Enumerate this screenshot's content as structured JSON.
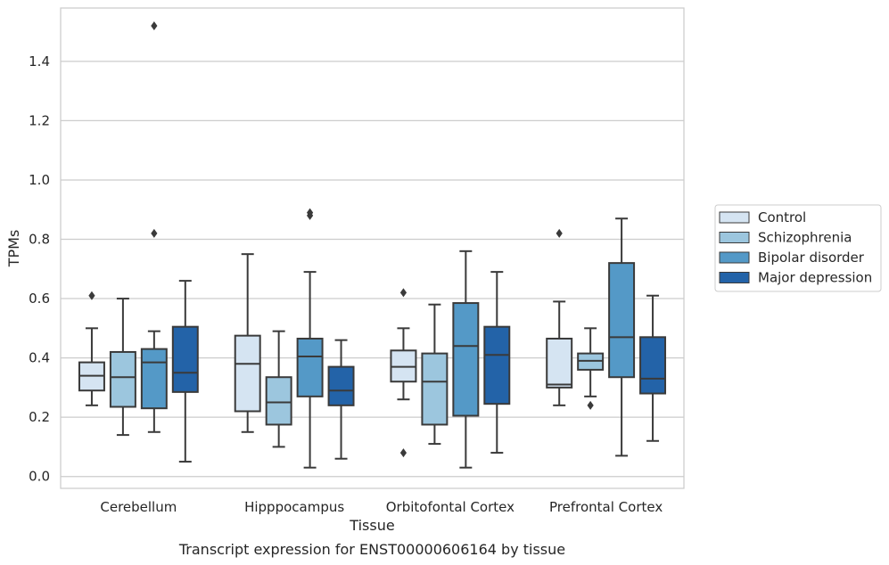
{
  "chart_data": {
    "type": "box",
    "title": "",
    "caption": "Transcript expression for ENST00000606164 by tissue",
    "xlabel": "Tissue",
    "ylabel": "TPMs",
    "ylim": [
      -0.04,
      1.58
    ],
    "yticks": [
      0.0,
      0.2,
      0.4,
      0.6,
      0.8,
      1.0,
      1.2,
      1.4
    ],
    "ytick_labels": [
      "0.0",
      "0.2",
      "0.4",
      "0.6",
      "0.8",
      "1.0",
      "1.2",
      "1.4"
    ],
    "grid": "horizontal",
    "legend_position": "right",
    "categories": [
      "Cerebellum",
      "Hipppocampus",
      "Orbitofontal Cortex",
      "Prefrontal Cortex"
    ],
    "series": [
      {
        "name": "Control",
        "color": "#d5e4f2",
        "boxes": [
          {
            "whislo": 0.24,
            "q1": 0.29,
            "med": 0.34,
            "q3": 0.385,
            "whishi": 0.5,
            "fliers": [
              0.61
            ]
          },
          {
            "whislo": 0.15,
            "q1": 0.22,
            "med": 0.38,
            "q3": 0.475,
            "whishi": 0.75,
            "fliers": []
          },
          {
            "whislo": 0.26,
            "q1": 0.32,
            "med": 0.37,
            "q3": 0.425,
            "whishi": 0.5,
            "fliers": [
              0.62,
              0.08
            ]
          },
          {
            "whislo": 0.24,
            "q1": 0.3,
            "med": 0.31,
            "q3": 0.465,
            "whishi": 0.59,
            "fliers": [
              0.82
            ]
          }
        ]
      },
      {
        "name": "Schizophrenia",
        "color": "#9cc6de",
        "boxes": [
          {
            "whislo": 0.14,
            "q1": 0.235,
            "med": 0.335,
            "q3": 0.42,
            "whishi": 0.6,
            "fliers": []
          },
          {
            "whislo": 0.1,
            "q1": 0.175,
            "med": 0.25,
            "q3": 0.335,
            "whishi": 0.49,
            "fliers": []
          },
          {
            "whislo": 0.11,
            "q1": 0.175,
            "med": 0.32,
            "q3": 0.415,
            "whishi": 0.58,
            "fliers": []
          },
          {
            "whislo": 0.27,
            "q1": 0.36,
            "med": 0.39,
            "q3": 0.415,
            "whishi": 0.5,
            "fliers": [
              0.24
            ]
          }
        ]
      },
      {
        "name": "Bipolar disorder",
        "color": "#5499c7",
        "boxes": [
          {
            "whislo": 0.15,
            "q1": 0.23,
            "med": 0.385,
            "q3": 0.43,
            "whishi": 0.49,
            "fliers": [
              0.82,
              1.52
            ]
          },
          {
            "whislo": 0.03,
            "q1": 0.27,
            "med": 0.405,
            "q3": 0.465,
            "whishi": 0.69,
            "fliers": [
              0.88,
              0.89
            ]
          },
          {
            "whislo": 0.03,
            "q1": 0.205,
            "med": 0.44,
            "q3": 0.585,
            "whishi": 0.76,
            "fliers": []
          },
          {
            "whislo": 0.07,
            "q1": 0.335,
            "med": 0.47,
            "q3": 0.72,
            "whishi": 0.87,
            "fliers": []
          }
        ]
      },
      {
        "name": "Major depression",
        "color": "#2363a8",
        "boxes": [
          {
            "whislo": 0.05,
            "q1": 0.285,
            "med": 0.35,
            "q3": 0.505,
            "whishi": 0.66,
            "fliers": []
          },
          {
            "whislo": 0.06,
            "q1": 0.24,
            "med": 0.29,
            "q3": 0.37,
            "whishi": 0.46,
            "fliers": []
          },
          {
            "whislo": 0.08,
            "q1": 0.245,
            "med": 0.41,
            "q3": 0.505,
            "whishi": 0.69,
            "fliers": []
          },
          {
            "whislo": 0.12,
            "q1": 0.28,
            "med": 0.33,
            "q3": 0.47,
            "whishi": 0.61,
            "fliers": []
          }
        ]
      }
    ]
  }
}
